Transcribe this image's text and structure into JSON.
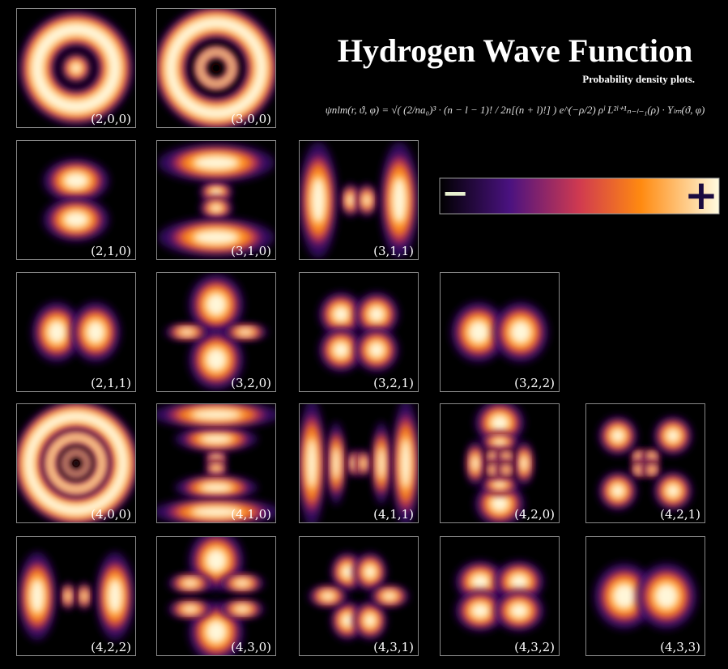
{
  "header": {
    "title": "Hydrogen Wave Function",
    "subtitle": "Probability density plots.",
    "formula": "ψnlm(r, ϑ, φ) = √( (2/na₀)³ · (n − l − 1)! / 2n[(n + l)!] ) e^(−ρ/2) ρˡ L²ˡ⁺¹ₙ₋ₗ₋₁(ρ) · Yₗₘ(ϑ, φ)"
  },
  "colorbar": {
    "min_label": "−",
    "max_label": "+"
  },
  "panels": [
    [
      "(2,0,0)",
      "(3,0,0)"
    ],
    [
      "(2,1,0)",
      "(3,1,0)",
      "(3,1,1)"
    ],
    [
      "(2,1,1)",
      "(3,2,0)",
      "(3,2,1)",
      "(3,2,2)"
    ],
    [
      "(4,0,0)",
      "(4,1,0)",
      "(4,1,1)",
      "(4,2,0)",
      "(4,2,1)"
    ],
    [
      "(4,2,2)",
      "(4,3,0)",
      "(4,3,1)",
      "(4,3,2)",
      "(4,3,3)"
    ]
  ]
}
